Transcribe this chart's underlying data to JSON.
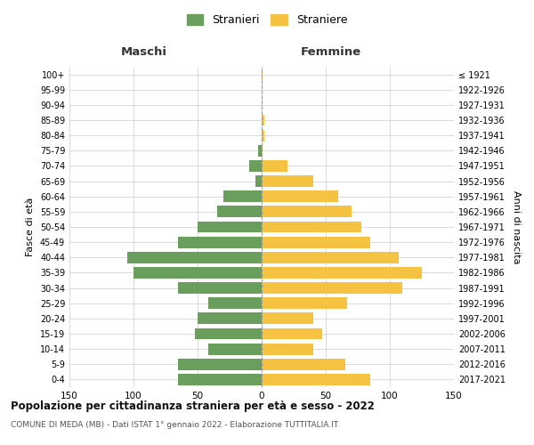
{
  "age_groups": [
    "0-4",
    "5-9",
    "10-14",
    "15-19",
    "20-24",
    "25-29",
    "30-34",
    "35-39",
    "40-44",
    "45-49",
    "50-54",
    "55-59",
    "60-64",
    "65-69",
    "70-74",
    "75-79",
    "80-84",
    "85-89",
    "90-94",
    "95-99",
    "100+"
  ],
  "birth_years": [
    "2017-2021",
    "2012-2016",
    "2007-2011",
    "2002-2006",
    "1997-2001",
    "1992-1996",
    "1987-1991",
    "1982-1986",
    "1977-1981",
    "1972-1976",
    "1967-1971",
    "1962-1966",
    "1957-1961",
    "1952-1956",
    "1947-1951",
    "1942-1946",
    "1937-1941",
    "1932-1936",
    "1927-1931",
    "1922-1926",
    "≤ 1921"
  ],
  "males": [
    65,
    65,
    42,
    52,
    50,
    42,
    65,
    100,
    105,
    65,
    50,
    35,
    30,
    5,
    10,
    3,
    0,
    0,
    0,
    0,
    0
  ],
  "females": [
    85,
    65,
    40,
    47,
    40,
    67,
    110,
    125,
    107,
    85,
    78,
    70,
    60,
    40,
    20,
    1,
    2,
    2,
    0,
    0,
    1
  ],
  "male_color": "#6a9e5c",
  "female_color": "#f5c242",
  "male_label": "Stranieri",
  "female_label": "Straniere",
  "title": "Popolazione per cittadinanza straniera per età e sesso - 2022",
  "subtitle": "COMUNE DI MEDA (MB) - Dati ISTAT 1° gennaio 2022 - Elaborazione TUTTITALIA.IT",
  "xlabel_left": "Maschi",
  "xlabel_right": "Femmine",
  "ylabel_left": "Fasce di età",
  "ylabel_right": "Anni di nascita",
  "xlim": 150,
  "background_color": "#ffffff",
  "grid_color": "#cccccc"
}
